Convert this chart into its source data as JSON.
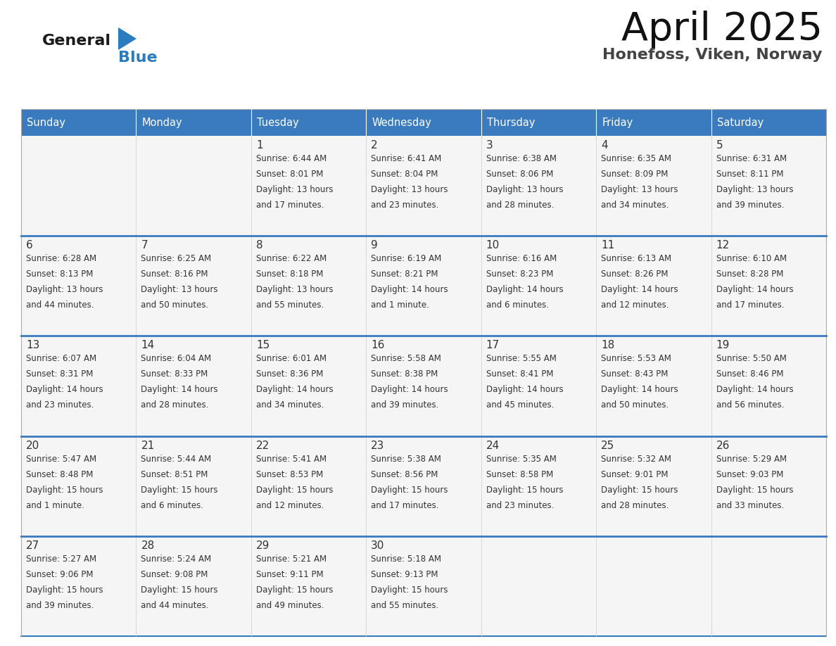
{
  "title": "April 2025",
  "subtitle": "Honefoss, Viken, Norway",
  "days_of_week": [
    "Sunday",
    "Monday",
    "Tuesday",
    "Wednesday",
    "Thursday",
    "Friday",
    "Saturday"
  ],
  "header_bg": "#3a7bbf",
  "header_text": "#ffffff",
  "cell_bg": "#f5f5f5",
  "cell_bg_alt": "#ffffff",
  "separator_color": "#3a7bbf",
  "border_color": "#cccccc",
  "text_color": "#333333",
  "calendar_data": [
    [
      {
        "day": null,
        "info": null
      },
      {
        "day": null,
        "info": null
      },
      {
        "day": 1,
        "info": "Sunrise: 6:44 AM\nSunset: 8:01 PM\nDaylight: 13 hours\nand 17 minutes."
      },
      {
        "day": 2,
        "info": "Sunrise: 6:41 AM\nSunset: 8:04 PM\nDaylight: 13 hours\nand 23 minutes."
      },
      {
        "day": 3,
        "info": "Sunrise: 6:38 AM\nSunset: 8:06 PM\nDaylight: 13 hours\nand 28 minutes."
      },
      {
        "day": 4,
        "info": "Sunrise: 6:35 AM\nSunset: 8:09 PM\nDaylight: 13 hours\nand 34 minutes."
      },
      {
        "day": 5,
        "info": "Sunrise: 6:31 AM\nSunset: 8:11 PM\nDaylight: 13 hours\nand 39 minutes."
      }
    ],
    [
      {
        "day": 6,
        "info": "Sunrise: 6:28 AM\nSunset: 8:13 PM\nDaylight: 13 hours\nand 44 minutes."
      },
      {
        "day": 7,
        "info": "Sunrise: 6:25 AM\nSunset: 8:16 PM\nDaylight: 13 hours\nand 50 minutes."
      },
      {
        "day": 8,
        "info": "Sunrise: 6:22 AM\nSunset: 8:18 PM\nDaylight: 13 hours\nand 55 minutes."
      },
      {
        "day": 9,
        "info": "Sunrise: 6:19 AM\nSunset: 8:21 PM\nDaylight: 14 hours\nand 1 minute."
      },
      {
        "day": 10,
        "info": "Sunrise: 6:16 AM\nSunset: 8:23 PM\nDaylight: 14 hours\nand 6 minutes."
      },
      {
        "day": 11,
        "info": "Sunrise: 6:13 AM\nSunset: 8:26 PM\nDaylight: 14 hours\nand 12 minutes."
      },
      {
        "day": 12,
        "info": "Sunrise: 6:10 AM\nSunset: 8:28 PM\nDaylight: 14 hours\nand 17 minutes."
      }
    ],
    [
      {
        "day": 13,
        "info": "Sunrise: 6:07 AM\nSunset: 8:31 PM\nDaylight: 14 hours\nand 23 minutes."
      },
      {
        "day": 14,
        "info": "Sunrise: 6:04 AM\nSunset: 8:33 PM\nDaylight: 14 hours\nand 28 minutes."
      },
      {
        "day": 15,
        "info": "Sunrise: 6:01 AM\nSunset: 8:36 PM\nDaylight: 14 hours\nand 34 minutes."
      },
      {
        "day": 16,
        "info": "Sunrise: 5:58 AM\nSunset: 8:38 PM\nDaylight: 14 hours\nand 39 minutes."
      },
      {
        "day": 17,
        "info": "Sunrise: 5:55 AM\nSunset: 8:41 PM\nDaylight: 14 hours\nand 45 minutes."
      },
      {
        "day": 18,
        "info": "Sunrise: 5:53 AM\nSunset: 8:43 PM\nDaylight: 14 hours\nand 50 minutes."
      },
      {
        "day": 19,
        "info": "Sunrise: 5:50 AM\nSunset: 8:46 PM\nDaylight: 14 hours\nand 56 minutes."
      }
    ],
    [
      {
        "day": 20,
        "info": "Sunrise: 5:47 AM\nSunset: 8:48 PM\nDaylight: 15 hours\nand 1 minute."
      },
      {
        "day": 21,
        "info": "Sunrise: 5:44 AM\nSunset: 8:51 PM\nDaylight: 15 hours\nand 6 minutes."
      },
      {
        "day": 22,
        "info": "Sunrise: 5:41 AM\nSunset: 8:53 PM\nDaylight: 15 hours\nand 12 minutes."
      },
      {
        "day": 23,
        "info": "Sunrise: 5:38 AM\nSunset: 8:56 PM\nDaylight: 15 hours\nand 17 minutes."
      },
      {
        "day": 24,
        "info": "Sunrise: 5:35 AM\nSunset: 8:58 PM\nDaylight: 15 hours\nand 23 minutes."
      },
      {
        "day": 25,
        "info": "Sunrise: 5:32 AM\nSunset: 9:01 PM\nDaylight: 15 hours\nand 28 minutes."
      },
      {
        "day": 26,
        "info": "Sunrise: 5:29 AM\nSunset: 9:03 PM\nDaylight: 15 hours\nand 33 minutes."
      }
    ],
    [
      {
        "day": 27,
        "info": "Sunrise: 5:27 AM\nSunset: 9:06 PM\nDaylight: 15 hours\nand 39 minutes."
      },
      {
        "day": 28,
        "info": "Sunrise: 5:24 AM\nSunset: 9:08 PM\nDaylight: 15 hours\nand 44 minutes."
      },
      {
        "day": 29,
        "info": "Sunrise: 5:21 AM\nSunset: 9:11 PM\nDaylight: 15 hours\nand 49 minutes."
      },
      {
        "day": 30,
        "info": "Sunrise: 5:18 AM\nSunset: 9:13 PM\nDaylight: 15 hours\nand 55 minutes."
      },
      {
        "day": null,
        "info": null
      },
      {
        "day": null,
        "info": null
      },
      {
        "day": null,
        "info": null
      }
    ]
  ],
  "logo_general_color": "#1a1a1a",
  "logo_blue_color": "#2b7bbf",
  "logo_triangle_color": "#2b7bbf"
}
